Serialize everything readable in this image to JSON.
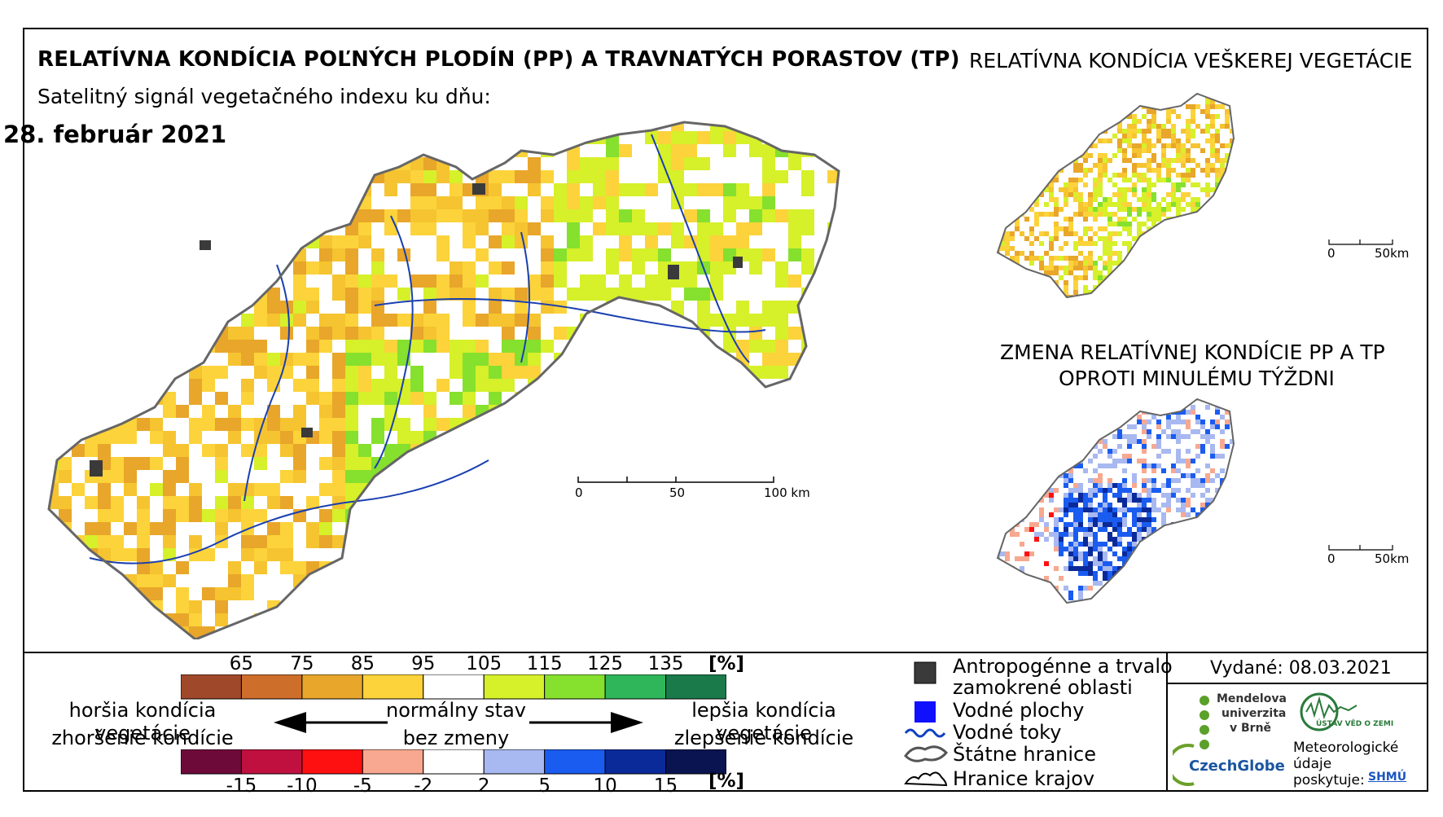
{
  "titles": {
    "main": "RELATÍVNA KONDÍCIA POĽNÝCH PLODÍN (PP) A TRAVNATÝCH PORASTOV (TP)",
    "subtitle": "Satelitný signál vegetačného indexu ku dňu:",
    "date": "28. február 2021",
    "right_top": "RELATÍVNA KONDÍCIA VEŠKEREJ VEGETÁCIE",
    "right_bottom_line1": "ZMENA RELATÍVNEJ KONDÍCIE PP A TP",
    "right_bottom_line2": "OPROTI MINULÉMU TÝŽDNI"
  },
  "scalebars": {
    "main": {
      "labels": [
        "0",
        "50",
        "100 km"
      ]
    },
    "small_top": {
      "labels": [
        "0",
        "50km"
      ]
    },
    "small_bottom": {
      "labels": [
        "0",
        "50km"
      ]
    }
  },
  "legend_condition": {
    "ticks": [
      "65",
      "75",
      "85",
      "95",
      "105",
      "115",
      "125",
      "135"
    ],
    "unit": "[%]",
    "colors": [
      "#a0482a",
      "#cd6e2a",
      "#e8a62a",
      "#fcd33a",
      "#ffffff",
      "#d6f02a",
      "#86e02e",
      "#2fb55a",
      "#1a7a4a"
    ]
  },
  "legend_change": {
    "ticks": [
      "-15",
      "-10",
      "-5",
      "-2",
      "2",
      "5",
      "10",
      "15"
    ],
    "unit": "[%]",
    "colors": [
      "#6e0a3a",
      "#c01040",
      "#ff1010",
      "#f8a890",
      "#ffffff",
      "#a8b8f0",
      "#1a5cf0",
      "#0a2a9a",
      "#0a1450"
    ]
  },
  "legend_text": {
    "worse_line1": "horšia kondícia vegetácie",
    "worse_line2": "zhoršenie kondície",
    "normal_line1": "normálny stav",
    "normal_line2": "bez zmeny",
    "better_line1": "lepšia kondícia vegetácie",
    "better_line2": "zlepšenie kondície"
  },
  "symbols": {
    "anthropogenic_line1": "Antropogénne a trvalo",
    "anthropogenic_line2": "zamokrené oblasti",
    "water_bodies": "Vodné plochy",
    "streams": "Vodné toky",
    "state_border": "Štátne hranice",
    "region_border": "Hranice krajov",
    "colors": {
      "anthropogenic": "#3a3a3a",
      "water": "#1010ff",
      "stream": "#1040c0"
    }
  },
  "credits": {
    "issued": "Vydané: 08.03.2021",
    "mendel_line1": "Mendelova",
    "mendel_line2": "univerzita",
    "mendel_line3": "v Brně",
    "czechglobe": "CzechGlobe",
    "ustav": "ÚSTAV VĚD O ZEMI",
    "meteo_line1": "Meteorologické",
    "meteo_line2": "údaje",
    "meteo_line3": "poskytuje:",
    "shmu": "SHMÚ"
  }
}
